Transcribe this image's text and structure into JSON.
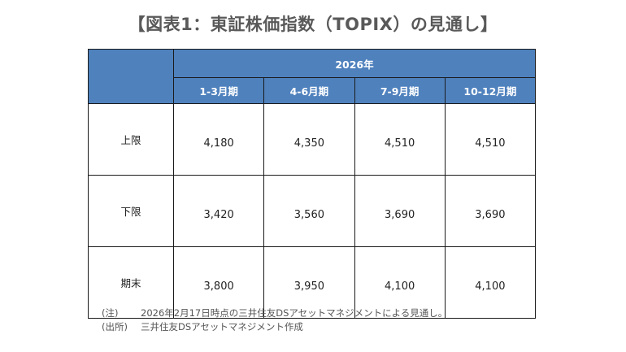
{
  "title": "【図表1：東証株価指数（TOPIX）の見通し】",
  "table": {
    "year_header": "2026年",
    "columns": [
      "1-3月期",
      "4-6月期",
      "7-9月期",
      "10-12月期"
    ],
    "rows": [
      {
        "label": "上限",
        "values": [
          "4,180",
          "4,350",
          "4,510",
          "4,510"
        ]
      },
      {
        "label": "下限",
        "values": [
          "3,420",
          "3,560",
          "3,690",
          "3,690"
        ]
      },
      {
        "label": "期末",
        "values": [
          "3,800",
          "3,950",
          "4,100",
          "4,100"
        ]
      }
    ]
  },
  "notes": [
    {
      "key": "(注)",
      "text": "2026年2月17日時点の三井住友DSアセットマネジメントによる見通し。"
    },
    {
      "key": "(出所)",
      "text": "三井住友DSアセットマネジメント作成"
    }
  ]
}
